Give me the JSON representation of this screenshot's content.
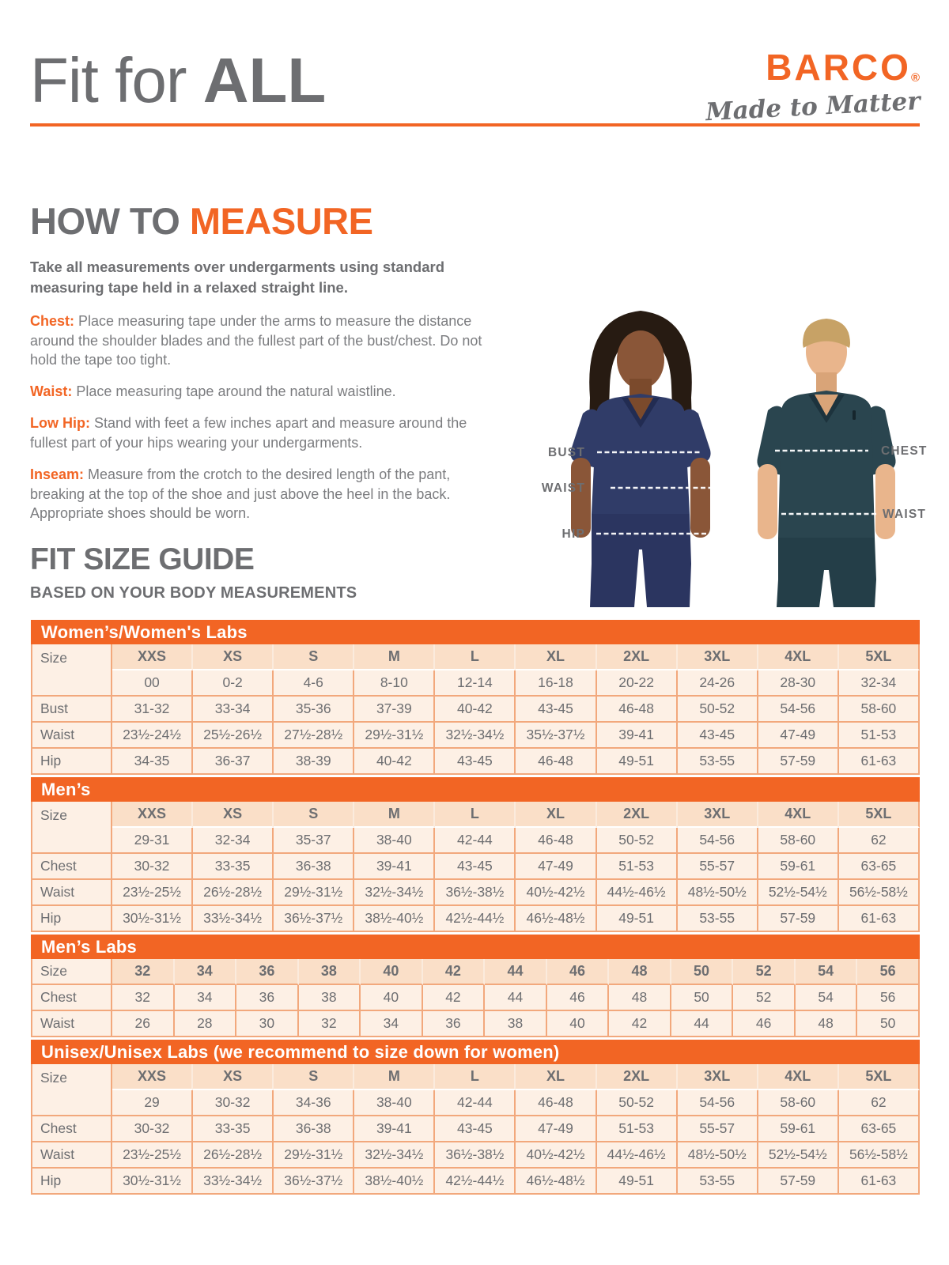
{
  "colors": {
    "accent_orange": "#F26524",
    "bar_orange": "#F26524",
    "text_gray": "#6D6E71",
    "body_gray": "#7B7C7F",
    "cell_cream": "#FDF0E5",
    "cell_peach": "#FADFC8",
    "cell_border": "#F2A87C",
    "woman_scrub_navy": "#303C68",
    "man_scrub_teal": "#2A454F"
  },
  "masthead": {
    "title_regular": "Fit for ",
    "title_bold": "ALL"
  },
  "brand": {
    "name": "BARCO",
    "registered": "®",
    "tagline": "Made to Matter"
  },
  "measure": {
    "heading_gray": "HOW TO ",
    "heading_accent": "MEASURE",
    "intro": "Take all measurements over undergarments using standard measuring tape held in a relaxed straight line.",
    "items": [
      {
        "label": "Chest:",
        "text": " Place measuring tape under the arms to measure the distance around the shoulder blades and the fullest part of the bust/chest. Do not hold the tape too tight."
      },
      {
        "label": "Waist:",
        "text": " Place measuring tape around the natural waistline."
      },
      {
        "label": "Low Hip:",
        "text": " Stand with feet a few inches apart and measure around the fullest part of your hips wearing your undergarments."
      },
      {
        "label": "Inseam:",
        "text": " Measure from the crotch to the desired length of the pant, breaking at the top of the shoe and just above the heel in the back. Appropriate shoes should be worn."
      }
    ]
  },
  "figure": {
    "left_labels": [
      "BUST",
      "WAIST",
      "HIP"
    ],
    "right_labels": [
      "CHEST",
      "WAIST"
    ]
  },
  "size_guide": {
    "title": "FIT SIZE GUIDE",
    "subtitle": "BASED ON YOUR BODY MEASUREMENTS"
  },
  "tables": [
    {
      "id": "womens",
      "title": "Women’s/Women's Labs",
      "size_label": "Size",
      "col_headers": [
        "XXS",
        "XS",
        "S",
        "M",
        "L",
        "XL",
        "2XL",
        "3XL",
        "4XL",
        "5XL"
      ],
      "size_numeric": [
        "00",
        "0-2",
        "4-6",
        "8-10",
        "12-14",
        "16-18",
        "20-22",
        "24-26",
        "28-30",
        "32-34"
      ],
      "rows": [
        {
          "label": "Bust",
          "values": [
            "31-32",
            "33-34",
            "35-36",
            "37-39",
            "40-42",
            "43-45",
            "46-48",
            "50-52",
            "54-56",
            "58-60"
          ]
        },
        {
          "label": "Waist",
          "values": [
            "23½-24½",
            "25½-26½",
            "27½-28½",
            "29½-31½",
            "32½-34½",
            "35½-37½",
            "39-41",
            "43-45",
            "47-49",
            "51-53"
          ]
        },
        {
          "label": "Hip",
          "values": [
            "34-35",
            "36-37",
            "38-39",
            "40-42",
            "43-45",
            "46-48",
            "49-51",
            "53-55",
            "57-59",
            "61-63"
          ]
        }
      ]
    },
    {
      "id": "mens",
      "title": "Men’s",
      "size_label": "Size",
      "col_headers": [
        "XXS",
        "XS",
        "S",
        "M",
        "L",
        "XL",
        "2XL",
        "3XL",
        "4XL",
        "5XL"
      ],
      "size_numeric": [
        "29-31",
        "32-34",
        "35-37",
        "38-40",
        "42-44",
        "46-48",
        "50-52",
        "54-56",
        "58-60",
        "62"
      ],
      "rows": [
        {
          "label": "Chest",
          "values": [
            "30-32",
            "33-35",
            "36-38",
            "39-41",
            "43-45",
            "47-49",
            "51-53",
            "55-57",
            "59-61",
            "63-65"
          ]
        },
        {
          "label": "Waist",
          "values": [
            "23½-25½",
            "26½-28½",
            "29½-31½",
            "32½-34½",
            "36½-38½",
            "40½-42½",
            "44½-46½",
            "48½-50½",
            "52½-54½",
            "56½-58½"
          ]
        },
        {
          "label": "Hip",
          "values": [
            "30½-31½",
            "33½-34½",
            "36½-37½",
            "38½-40½",
            "42½-44½",
            "46½-48½",
            "49-51",
            "53-55",
            "57-59",
            "61-63"
          ]
        }
      ]
    },
    {
      "id": "mens-labs",
      "title": "Men’s Labs",
      "size_label": "Size",
      "col_headers": [
        "32",
        "34",
        "36",
        "38",
        "40",
        "42",
        "44",
        "46",
        "48",
        "50",
        "52",
        "54",
        "56"
      ],
      "size_numeric": null,
      "rows": [
        {
          "label": "Chest",
          "values": [
            "32",
            "34",
            "36",
            "38",
            "40",
            "42",
            "44",
            "46",
            "48",
            "50",
            "52",
            "54",
            "56"
          ]
        },
        {
          "label": "Waist",
          "values": [
            "26",
            "28",
            "30",
            "32",
            "34",
            "36",
            "38",
            "40",
            "42",
            "44",
            "46",
            "48",
            "50"
          ]
        }
      ]
    },
    {
      "id": "unisex",
      "title": "Unisex/Unisex Labs (we recommend to size down for women)",
      "size_label": "Size",
      "col_headers": [
        "XXS",
        "XS",
        "S",
        "M",
        "L",
        "XL",
        "2XL",
        "3XL",
        "4XL",
        "5XL"
      ],
      "size_numeric": [
        "29",
        "30-32",
        "34-36",
        "38-40",
        "42-44",
        "46-48",
        "50-52",
        "54-56",
        "58-60",
        "62"
      ],
      "rows": [
        {
          "label": "Chest",
          "values": [
            "30-32",
            "33-35",
            "36-38",
            "39-41",
            "43-45",
            "47-49",
            "51-53",
            "55-57",
            "59-61",
            "63-65"
          ]
        },
        {
          "label": "Waist",
          "values": [
            "23½-25½",
            "26½-28½",
            "29½-31½",
            "32½-34½",
            "36½-38½",
            "40½-42½",
            "44½-46½",
            "48½-50½",
            "52½-54½",
            "56½-58½"
          ]
        },
        {
          "label": "Hip",
          "values": [
            "30½-31½",
            "33½-34½",
            "36½-37½",
            "38½-40½",
            "42½-44½",
            "46½-48½",
            "49-51",
            "53-55",
            "57-59",
            "61-63"
          ]
        }
      ]
    }
  ]
}
